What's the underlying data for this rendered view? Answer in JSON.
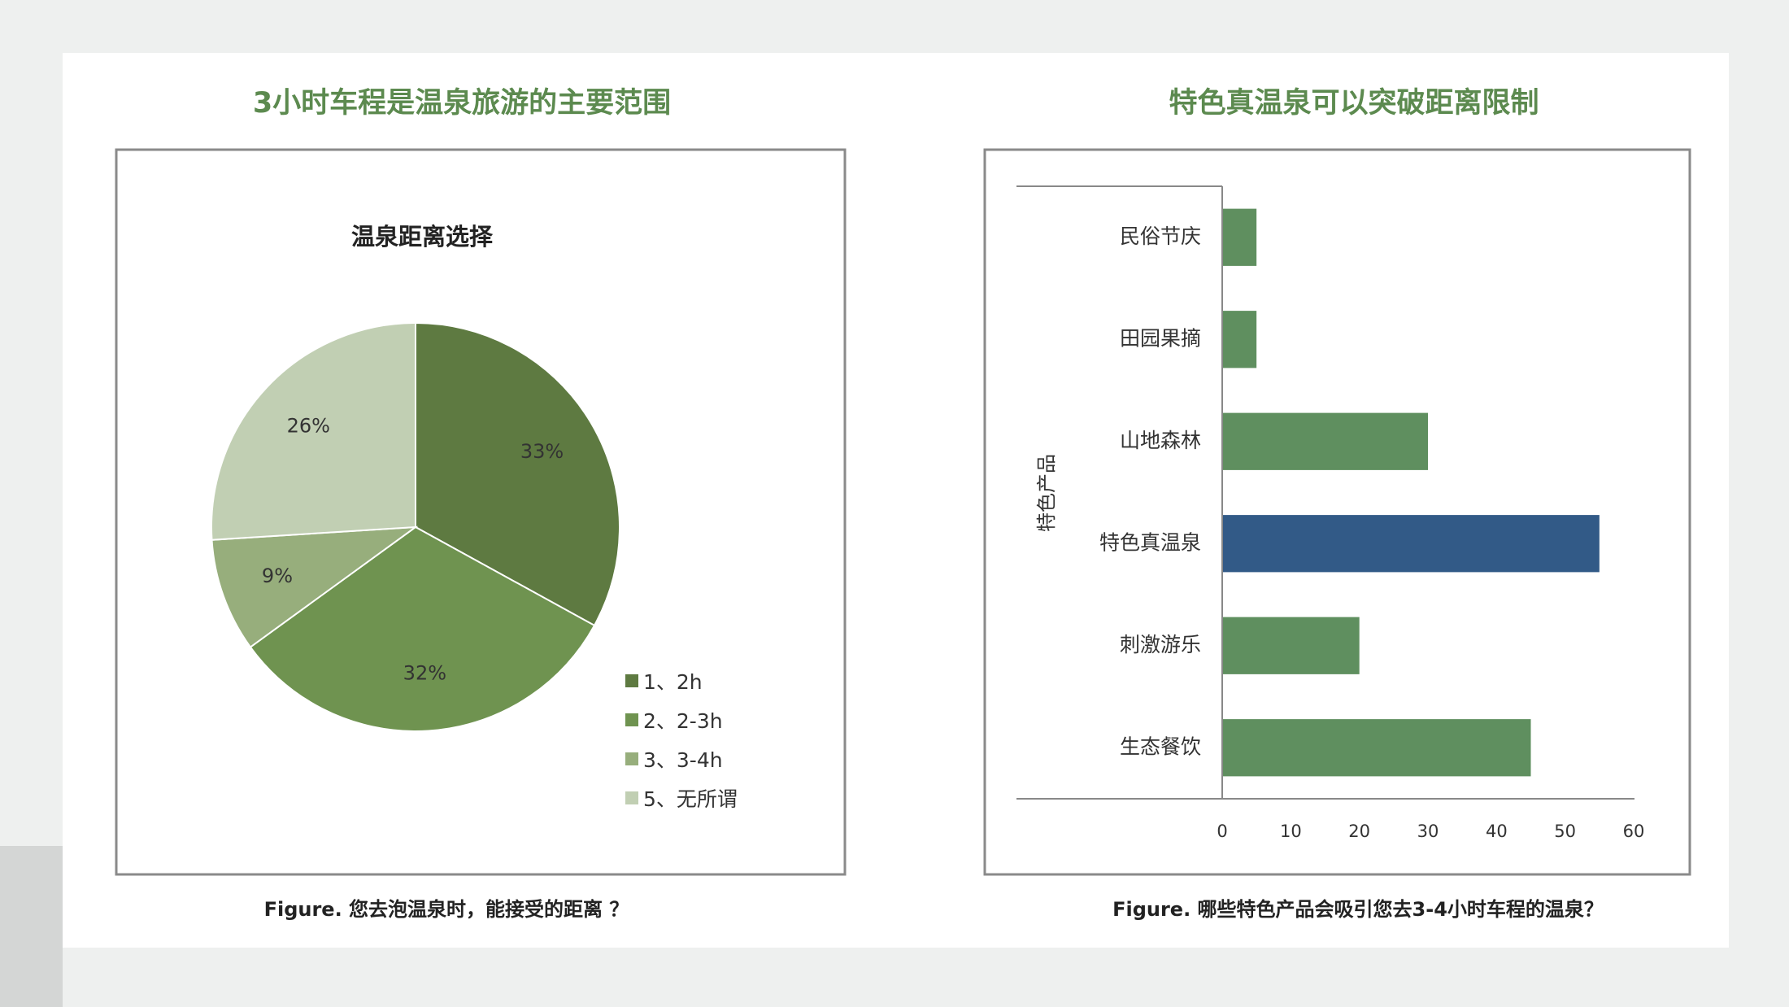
{
  "chart_data": [
    {
      "type": "pie",
      "heading": "3小时车程是温泉旅游的主要范围",
      "title": "温泉距离选择",
      "caption": "Figure.  您去泡温泉时，能接受的距离 ？",
      "categories": [
        "1、2h",
        "2、2-3h",
        "3、3-4h",
        "5、无所谓"
      ],
      "values": [
        33,
        32,
        9,
        26
      ],
      "value_labels": [
        "33%",
        "32%",
        "9%",
        "26%"
      ],
      "colors": [
        "#5e7a41",
        "#6f9350",
        "#97ae7c",
        "#c1cfb3"
      ],
      "legend": "right"
    },
    {
      "type": "hbar",
      "heading": "特色真温泉可以突破距离限制",
      "caption": "Figure.  哪些特色产品会吸引您去3-4小时车程的温泉？",
      "y_label": "特色产品",
      "categories": [
        "民俗节庆",
        "田园果摘",
        "山地森林",
        "特色真温泉",
        "刺激游乐",
        "生态餐饮"
      ],
      "values": [
        5,
        5,
        30,
        55,
        20,
        45
      ],
      "colors": [
        "#5f8f5f",
        "#5f8f5f",
        "#5f8f5f",
        "#325a87",
        "#5f8f5f",
        "#5f8f5f"
      ],
      "xlim": [
        0,
        60
      ],
      "xticks": [
        0,
        10,
        20,
        30,
        40,
        50,
        60
      ],
      "grid": false
    }
  ]
}
